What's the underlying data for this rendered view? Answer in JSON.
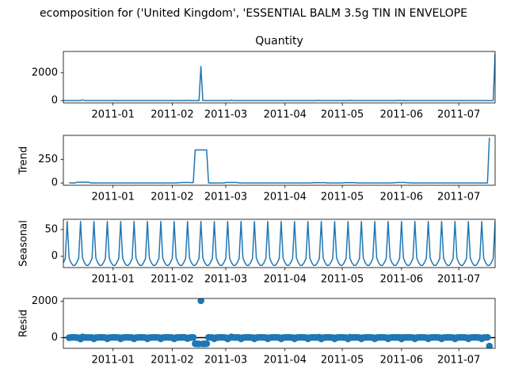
{
  "chart_data": {
    "title": "ecomposition for ('United Kingdom', 'ESSENTIAL BALM 3.5g TIN IN ENVELOPE",
    "color": "#1f77b4",
    "x": [
      14949,
      14950,
      14951,
      14952,
      14953,
      14954,
      14955,
      14956,
      14957,
      14958,
      14959,
      14960,
      14961,
      14962,
      14963,
      14964,
      14965,
      14966,
      14967,
      14968,
      14969,
      14970,
      14971,
      14972,
      14973,
      14974,
      14975,
      14976,
      14977,
      14978,
      14979,
      14980,
      14981,
      14982,
      14983,
      14984,
      14985,
      14986,
      14987,
      14988,
      14989,
      14990,
      14991,
      14992,
      14993,
      14994,
      14995,
      14996,
      14997,
      14998,
      14999,
      15000,
      15001,
      15002,
      15003,
      15004,
      15005,
      15006,
      15007,
      15008,
      15009,
      15010,
      15011,
      15012,
      15013,
      15014,
      15015,
      15016,
      15017,
      15018,
      15019,
      15020,
      15021,
      15022,
      15023,
      15024,
      15025,
      15026,
      15027,
      15028,
      15029,
      15030,
      15031,
      15032,
      15033,
      15034,
      15035,
      15036,
      15037,
      15038,
      15039,
      15040,
      15041,
      15042,
      15043,
      15044,
      15045,
      15046,
      15047,
      15048,
      15049,
      15050,
      15051,
      15052,
      15053,
      15054,
      15055,
      15056,
      15057,
      15058,
      15059,
      15060,
      15061,
      15062,
      15063,
      15064,
      15065,
      15066,
      15067,
      15068,
      15069,
      15070,
      15071,
      15072,
      15073,
      15074,
      15075,
      15076,
      15077,
      15078,
      15079,
      15080,
      15081,
      15082,
      15083,
      15084,
      15085,
      15086,
      15087,
      15088,
      15089,
      15090,
      15091,
      15092,
      15093,
      15094,
      15095,
      15096,
      15097,
      15098,
      15099,
      15100,
      15101,
      15102,
      15103,
      15104,
      15105,
      15106,
      15107,
      15108,
      15109,
      15110,
      15111,
      15112,
      15113,
      15114,
      15115,
      15116,
      15117,
      15118,
      15119,
      15120,
      15121,
      15122,
      15123,
      15124,
      15125,
      15126,
      15127,
      15128,
      15129,
      15130,
      15131,
      15132,
      15133,
      15134,
      15135,
      15136,
      15137,
      15138,
      15139,
      15140,
      15141,
      15142,
      15143,
      15144,
      15145,
      15146,
      15147,
      15148,
      15149,
      15150,
      15151,
      15152,
      15153,
      15154,
      15155,
      15156,
      15157,
      15158,
      15159,
      15160,
      15161,
      15162,
      15163,
      15164,
      15165,
      15166,
      15167,
      15168,
      15169,
      15170,
      15171,
      15172,
      15173,
      15174,
      15175
    ],
    "xlim": [
      14949,
      15175
    ],
    "xticks": [
      {
        "value": 14975,
        "label": "2011-01"
      },
      {
        "value": 15006,
        "label": "2011-02"
      },
      {
        "value": 15034,
        "label": "2011-03"
      },
      {
        "value": 15065,
        "label": "2011-04"
      },
      {
        "value": 15095,
        "label": "2011-05"
      },
      {
        "value": 15126,
        "label": "2011-06"
      },
      {
        "value": 15156,
        "label": "2011-07"
      }
    ],
    "panels": [
      {
        "type": "line",
        "title": "Quantity",
        "ylim": [
          -168,
          3528
        ],
        "yticks": [
          0,
          2000
        ],
        "values": [
          24,
          0,
          0,
          0,
          0,
          0,
          0,
          0,
          0,
          0,
          48,
          12,
          0,
          0,
          0,
          0,
          0,
          0,
          0,
          0,
          0,
          0,
          0,
          0,
          0,
          0,
          0,
          0,
          0,
          0,
          0,
          0,
          0,
          0,
          0,
          0,
          0,
          0,
          0,
          0,
          0,
          0,
          0,
          0,
          0,
          0,
          0,
          0,
          0,
          0,
          0,
          0,
          0,
          0,
          0,
          0,
          0,
          0,
          0,
          0,
          0,
          0,
          0,
          12,
          0,
          24,
          0,
          0,
          0,
          0,
          0,
          0,
          2450,
          0,
          0,
          0,
          0,
          0,
          0,
          0,
          0,
          0,
          0,
          0,
          0,
          0,
          0,
          0,
          36,
          0,
          0,
          0,
          0,
          0,
          0,
          0,
          0,
          0,
          0,
          0,
          0,
          0,
          0,
          0,
          0,
          0,
          0,
          0,
          0,
          0,
          0,
          0,
          0,
          0,
          0,
          0,
          0,
          0,
          0,
          0,
          0,
          0,
          0,
          0,
          0,
          0,
          0,
          0,
          0,
          0,
          0,
          0,
          0,
          0,
          24,
          0,
          0,
          0,
          0,
          0,
          0,
          0,
          0,
          0,
          0,
          0,
          0,
          0,
          0,
          0,
          24,
          0,
          0,
          0,
          0,
          0,
          0,
          0,
          0,
          0,
          0,
          0,
          0,
          0,
          0,
          0,
          0,
          0,
          0,
          0,
          0,
          0,
          0,
          0,
          0,
          0,
          24,
          0,
          12,
          0,
          0,
          0,
          0,
          0,
          0,
          0,
          0,
          0,
          0,
          0,
          0,
          0,
          0,
          0,
          0,
          0,
          0,
          0,
          0,
          0,
          0,
          0,
          0,
          0,
          0,
          0,
          0,
          0,
          0,
          0,
          0,
          0,
          0,
          0,
          0,
          0,
          0,
          0,
          0,
          0,
          0,
          0,
          0,
          0,
          0,
          0,
          3360
        ]
      },
      {
        "type": "line",
        "ylabel": "Trend",
        "ylim": [
          -24,
          504
        ],
        "yticks": [
          0,
          250
        ],
        "values": [
          null,
          null,
          null,
          3.43,
          0,
          0,
          0,
          6.86,
          8.57,
          8.57,
          8.57,
          8.57,
          8.57,
          8.57,
          1.71,
          0,
          0,
          0,
          0,
          0,
          0,
          0,
          0,
          0,
          0,
          0,
          0,
          0,
          0,
          0,
          0,
          0,
          0,
          0,
          0,
          0,
          0,
          0,
          0,
          0,
          0,
          0,
          0,
          0,
          0,
          0,
          0,
          0,
          0,
          0,
          0,
          0,
          0,
          0,
          0,
          0,
          0,
          0,
          0,
          0,
          1.71,
          1.71,
          5.14,
          5.14,
          5.14,
          5.14,
          5.14,
          3.43,
          3.43,
          350,
          350,
          350,
          350,
          350,
          350,
          350,
          0,
          0,
          0,
          0,
          0,
          0,
          0,
          0,
          0,
          5.14,
          5.14,
          5.14,
          5.14,
          5.14,
          5.14,
          5.14,
          0,
          0,
          0,
          0,
          0,
          0,
          0,
          0,
          0,
          0,
          0,
          0,
          0,
          0,
          0,
          0,
          0,
          0,
          0,
          0,
          0,
          0,
          0,
          0,
          0,
          0,
          0,
          0,
          0,
          0,
          0,
          0,
          0,
          0,
          0,
          0,
          0,
          0,
          0,
          3.43,
          3.43,
          3.43,
          3.43,
          3.43,
          3.43,
          3.43,
          0,
          0,
          0,
          0,
          0,
          0,
          0,
          0,
          0,
          3.43,
          3.43,
          3.43,
          3.43,
          3.43,
          3.43,
          3.43,
          0,
          0,
          0,
          0,
          0,
          0,
          0,
          0,
          0,
          0,
          0,
          0,
          0,
          0,
          0,
          0,
          0,
          0,
          0,
          3.43,
          3.43,
          5.14,
          5.14,
          5.14,
          5.14,
          5.14,
          1.71,
          1.71,
          0,
          0,
          0,
          0,
          0,
          0,
          0,
          0,
          0,
          0,
          0,
          0,
          0,
          0,
          0,
          0,
          0,
          0,
          0,
          0,
          0,
          0,
          0,
          0,
          0,
          0,
          0,
          0,
          0,
          0,
          0,
          0,
          0,
          0,
          0,
          0,
          0,
          0,
          0,
          0,
          0,
          480,
          null,
          null,
          null
        ]
      },
      {
        "type": "line",
        "ylabel": "Seasonal",
        "ylim": [
          -21.1,
          69.1
        ],
        "yticks": [
          0,
          50
        ],
        "values": [
          -12,
          -4,
          65,
          -3,
          -12,
          -17,
          -17,
          -12,
          -4,
          65,
          -3,
          -12,
          -17,
          -17,
          -12,
          -4,
          65,
          -3,
          -12,
          -17,
          -17,
          -12,
          -4,
          65,
          -3,
          -12,
          -17,
          -17,
          -12,
          -4,
          65,
          -3,
          -12,
          -17,
          -17,
          -12,
          -4,
          65,
          -3,
          -12,
          -17,
          -17,
          -12,
          -4,
          65,
          -3,
          -12,
          -17,
          -17,
          -12,
          -4,
          65,
          -3,
          -12,
          -17,
          -17,
          -12,
          -4,
          65,
          -3,
          -12,
          -17,
          -17,
          -12,
          -4,
          65,
          -3,
          -12,
          -17,
          -17,
          -12,
          -4,
          65,
          -3,
          -12,
          -17,
          -17,
          -12,
          -4,
          65,
          -3,
          -12,
          -17,
          -17,
          -12,
          -4,
          65,
          -3,
          -12,
          -17,
          -17,
          -12,
          -4,
          65,
          -3,
          -12,
          -17,
          -17,
          -12,
          -4,
          65,
          -3,
          -12,
          -17,
          -17,
          -12,
          -4,
          65,
          -3,
          -12,
          -17,
          -17,
          -12,
          -4,
          65,
          -3,
          -12,
          -17,
          -17,
          -12,
          -4,
          65,
          -3,
          -12,
          -17,
          -17,
          -12,
          -4,
          65,
          -3,
          -12,
          -17,
          -17,
          -12,
          -4,
          65,
          -3,
          -12,
          -17,
          -17,
          -12,
          -4,
          65,
          -3,
          -12,
          -17,
          -17,
          -12,
          -4,
          65,
          -3,
          -12,
          -17,
          -17,
          -12,
          -4,
          65,
          -3,
          -12,
          -17,
          -17,
          -12,
          -4,
          65,
          -3,
          -12,
          -17,
          -17,
          -12,
          -4,
          65,
          -3,
          -12,
          -17,
          -17,
          -12,
          -4,
          65,
          -3,
          -12,
          -17,
          -17,
          -12,
          -4,
          65,
          -3,
          -12,
          -17,
          -17,
          -12,
          -4,
          65,
          -3,
          -12,
          -17,
          -17,
          -12,
          -4,
          65,
          -3,
          -12,
          -17,
          -17,
          -12,
          -4,
          65,
          -3,
          -12,
          -17,
          -17,
          -12,
          -4,
          65,
          -3,
          -12,
          -17,
          -17,
          -12,
          -4,
          65,
          -3,
          -12,
          -17,
          -17,
          -12,
          -4,
          65
        ]
      },
      {
        "type": "scatter",
        "ylabel": "Resid",
        "ylim": [
          -588,
          2160
        ],
        "yticks": [
          0,
          2000
        ],
        "axhline": 0,
        "values": [
          null,
          null,
          null,
          -0.43,
          12,
          17,
          17,
          5.14,
          -4.57,
          -73.57,
          42.43,
          15.43,
          8.43,
          8.43,
          10.29,
          4,
          -65,
          3,
          12,
          17,
          17,
          12,
          4,
          -65,
          3,
          12,
          17,
          17,
          12,
          4,
          -65,
          3,
          12,
          17,
          17,
          12,
          4,
          -65,
          3,
          12,
          17,
          17,
          12,
          4,
          -65,
          3,
          12,
          17,
          17,
          12,
          4,
          -65,
          3,
          12,
          17,
          17,
          12,
          4,
          -65,
          3,
          10.29,
          15.29,
          11.86,
          18.86,
          -1.14,
          -46.14,
          -2.14,
          8.57,
          13.57,
          -333,
          -338,
          -346,
          2035,
          -347,
          -338,
          -333,
          17,
          12,
          4,
          -65,
          3,
          12,
          17,
          17,
          12,
          -1.14,
          -70.14,
          -2.14,
          42.86,
          11.86,
          11.86,
          6.86,
          4,
          -65,
          3,
          12,
          17,
          17,
          12,
          4,
          -65,
          3,
          12,
          17,
          17,
          12,
          4,
          -65,
          3,
          12,
          17,
          17,
          12,
          4,
          -65,
          3,
          12,
          17,
          17,
          12,
          4,
          -65,
          3,
          12,
          17,
          17,
          12,
          4,
          -65,
          3,
          12,
          13.57,
          13.57,
          8.57,
          24.57,
          -68.43,
          -0.43,
          8.57,
          17,
          17,
          12,
          4,
          -65,
          3,
          12,
          17,
          17,
          8.57,
          0.57,
          -68.43,
          23.57,
          8.57,
          13.57,
          13.57,
          12,
          4,
          -65,
          3,
          12,
          17,
          17,
          12,
          4,
          -65,
          3,
          12,
          17,
          17,
          12,
          4,
          -65,
          3,
          12,
          13.57,
          13.57,
          6.86,
          22.86,
          -70.14,
          9.86,
          6.86,
          15.29,
          15.29,
          12,
          4,
          -65,
          3,
          12,
          17,
          17,
          12,
          4,
          -65,
          3,
          12,
          17,
          17,
          12,
          4,
          -65,
          3,
          12,
          17,
          17,
          12,
          4,
          -65,
          3,
          12,
          17,
          17,
          12,
          4,
          -65,
          3,
          12,
          17,
          17,
          12,
          4,
          -65,
          3,
          12,
          17,
          -463,
          null,
          null,
          null
        ]
      }
    ]
  }
}
